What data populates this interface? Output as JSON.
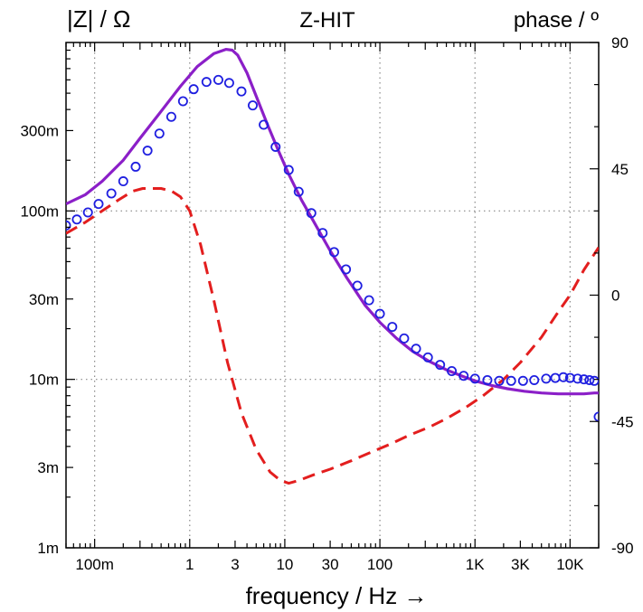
{
  "chart_data": {
    "type": "line",
    "title_left": "|Z| / Ω",
    "title_center": "Z-HIT",
    "title_right": "phase / º",
    "xlabel": "frequency / Hz →",
    "x_scale": "log",
    "xlim": [
      0.05,
      20000
    ],
    "x_ticks": [
      {
        "value": 0.1,
        "label": "100m"
      },
      {
        "value": 1,
        "label": "1"
      },
      {
        "value": 3,
        "label": "3"
      },
      {
        "value": 10,
        "label": "10"
      },
      {
        "value": 30,
        "label": "30"
      },
      {
        "value": 100,
        "label": "100"
      },
      {
        "value": 1000,
        "label": "1K"
      },
      {
        "value": 3000,
        "label": "3K"
      },
      {
        "value": 10000,
        "label": "10K"
      }
    ],
    "y_left_scale": "log",
    "y_left_lim": [
      0.001,
      1
    ],
    "y_left_ticks": [
      {
        "value": 0.001,
        "label": "1m"
      },
      {
        "value": 0.003,
        "label": "3m"
      },
      {
        "value": 0.01,
        "label": "10m"
      },
      {
        "value": 0.03,
        "label": "30m"
      },
      {
        "value": 0.1,
        "label": "100m"
      },
      {
        "value": 0.3,
        "label": "300m"
      }
    ],
    "y_right_lim": [
      -90,
      90
    ],
    "y_right_ticks": [
      {
        "value": 90,
        "label": "90"
      },
      {
        "value": 45,
        "label": "45"
      },
      {
        "value": 0,
        "label": "0"
      },
      {
        "value": -45,
        "label": "-45"
      },
      {
        "value": -90,
        "label": "-90"
      }
    ],
    "grid": "dotted",
    "colors": {
      "impedance": "#1f1fe0",
      "zhit": "#8b1fc8",
      "phase": "#e31e1e"
    },
    "series": [
      {
        "name": "|Z| / Ω",
        "style": "circles",
        "axis": "left",
        "x": [
          0.05,
          0.065,
          0.085,
          0.11,
          0.15,
          0.2,
          0.27,
          0.36,
          0.48,
          0.64,
          0.85,
          1.1,
          1.5,
          2.0,
          2.6,
          3.5,
          4.6,
          6.0,
          8.0,
          11,
          14,
          19,
          25,
          33,
          44,
          58,
          77,
          100,
          135,
          180,
          240,
          320,
          430,
          570,
          760,
          1000,
          1350,
          1800,
          2400,
          3200,
          4200,
          5600,
          7000,
          8500,
          10000,
          12000,
          14000,
          16000,
          18000,
          20000
        ],
        "y": [
          0.082,
          0.089,
          0.098,
          0.11,
          0.127,
          0.15,
          0.183,
          0.228,
          0.288,
          0.362,
          0.448,
          0.528,
          0.583,
          0.6,
          0.575,
          0.512,
          0.423,
          0.325,
          0.24,
          0.175,
          0.13,
          0.097,
          0.074,
          0.057,
          0.045,
          0.036,
          0.0295,
          0.0245,
          0.0205,
          0.0175,
          0.0152,
          0.0135,
          0.0122,
          0.0112,
          0.0105,
          0.0101,
          0.0099,
          0.0098,
          0.0098,
          0.0098,
          0.0099,
          0.0101,
          0.0102,
          0.0103,
          0.0102,
          0.0101,
          0.01,
          0.0099,
          0.0098,
          0.006
        ]
      },
      {
        "name": "Z-HIT",
        "style": "solid",
        "axis": "left",
        "x": [
          0.05,
          0.08,
          0.12,
          0.2,
          0.3,
          0.5,
          0.8,
          1.2,
          1.8,
          2.4,
          2.8,
          3.2,
          4.0,
          5.0,
          6.5,
          8.5,
          11,
          15,
          20,
          30,
          45,
          70,
          100,
          150,
          220,
          330,
          500,
          750,
          1000,
          1500,
          2200,
          3300,
          5000,
          7500,
          10000,
          14000,
          18000,
          20000
        ],
        "y": [
          0.11,
          0.125,
          0.15,
          0.2,
          0.27,
          0.39,
          0.55,
          0.72,
          0.86,
          0.91,
          0.9,
          0.84,
          0.66,
          0.48,
          0.33,
          0.23,
          0.165,
          0.116,
          0.087,
          0.058,
          0.04,
          0.0275,
          0.0218,
          0.0175,
          0.0147,
          0.0128,
          0.0114,
          0.0104,
          0.0098,
          0.0092,
          0.0088,
          0.0085,
          0.0083,
          0.0082,
          0.0082,
          0.0082,
          0.0083,
          0.0083
        ]
      },
      {
        "name": "phase / º",
        "style": "dashed",
        "axis": "right",
        "x": [
          0.05,
          0.08,
          0.12,
          0.18,
          0.25,
          0.32,
          0.4,
          0.5,
          0.65,
          0.8,
          1.0,
          1.3,
          1.8,
          2.5,
          3.5,
          5.0,
          7.0,
          9.0,
          11,
          14,
          20,
          30,
          50,
          80,
          130,
          200,
          330,
          500,
          800,
          1200,
          2000,
          3000,
          5000,
          7500,
          10000,
          14000,
          20000
        ],
        "y": [
          22,
          26,
          30,
          34,
          37,
          38,
          38,
          38,
          37,
          35,
          30,
          18,
          -2,
          -24,
          -42,
          -55,
          -63,
          -66,
          -67,
          -66,
          -64,
          -62,
          -59,
          -56,
          -53,
          -50,
          -47,
          -44,
          -40,
          -36,
          -30,
          -24,
          -15,
          -6,
          0,
          9,
          17
        ]
      }
    ]
  }
}
